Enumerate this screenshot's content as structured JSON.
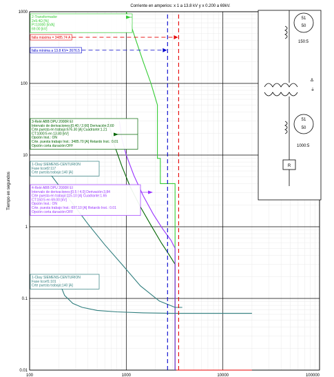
{
  "chart_data": {
    "type": "line",
    "title": "Corriente en amperios: x 1 a 13.8 kV y x 0.200 a 69kV.",
    "ylabel": "Tiempo en segundos",
    "xlabel": "",
    "x_scale": "log",
    "y_scale": "log",
    "xlim": [
      100,
      100000
    ],
    "ylim": [
      0.01,
      1000
    ],
    "grid": true,
    "x_tick_labels": [
      {
        "value": 100,
        "label": "100"
      },
      {
        "value": 1000,
        "label": "1000"
      },
      {
        "value": 10000,
        "label": "10000"
      },
      {
        "value": 100000,
        "label": "100000"
      }
    ],
    "y_tick_labels": [
      {
        "value": 1000,
        "label": "1000"
      },
      {
        "value": 100,
        "label": "100"
      },
      {
        "value": 10,
        "label": "10"
      },
      {
        "value": 1,
        "label": "1"
      },
      {
        "value": 0.1,
        "label": "0.1"
      },
      {
        "value": 0.01,
        "label": "0.01"
      }
    ],
    "series": [
      {
        "color": "#33cc33",
        "style": "solid",
        "x": [
          1000,
          1120,
          1260,
          1500,
          1800,
          2100,
          2100,
          2250,
          2250,
          3200,
          3200
        ],
        "y": [
          1000,
          650,
          400,
          200,
          100,
          50,
          9,
          9,
          4,
          4,
          0.01
        ]
      },
      {
        "color": "#006600",
        "style": "solid",
        "x": [
          650,
          750,
          900,
          1100,
          1400,
          1800,
          2300,
          2800,
          3200,
          3200
        ],
        "y": [
          30,
          14,
          7,
          3.6,
          1.9,
          1.05,
          0.6,
          0.4,
          0.3,
          0.01
        ]
      },
      {
        "color": "#9933ff",
        "style": "solid",
        "x": [
          850,
          900,
          1000,
          1200,
          1500,
          1900,
          2400,
          2900,
          3200,
          3200
        ],
        "y": [
          30,
          17,
          10,
          5.2,
          2.7,
          1.5,
          0.92,
          0.65,
          0.5,
          0.01
        ]
      },
      {
        "color": "#2e7d7d",
        "style": "solid",
        "x": [
          130,
          200,
          300,
          400,
          600,
          900,
          1400,
          2200,
          3200,
          3800
        ],
        "y": [
          8.2,
          3.8,
          1.85,
          1.1,
          0.56,
          0.3,
          0.15,
          0.092,
          0.075,
          0.075
        ]
      },
      {
        "color": "#2e7d7d",
        "style": "solid",
        "x": [
          200,
          210,
          230,
          280,
          350,
          500,
          800,
          1500,
          3000,
          8000,
          20000
        ],
        "y": [
          0.2,
          0.15,
          0.11,
          0.085,
          0.075,
          0.068,
          0.065,
          0.063,
          0.062,
          0.062,
          0.062
        ]
      },
      {
        "color": "#e60000",
        "style": "dashed",
        "x": [
          3485.7,
          3485.7
        ],
        "y": [
          0.01,
          1000
        ]
      },
      {
        "color": "#e60000",
        "style": "solid",
        "x": [
          3300,
          20000
        ],
        "y": [
          0.01,
          0.01
        ]
      },
      {
        "color": "#0000cc",
        "style": "dashed",
        "x": [
          2676.5,
          2676.5
        ],
        "y": [
          0.01,
          1000
        ]
      }
    ],
    "fault_markers": [
      {
        "label": "falla máxima = 3485.74 A",
        "x": 3485.7,
        "y": 440,
        "color": "#e60000"
      },
      {
        "label": "falla mínima a 13.8 KV= 2676.5",
        "x": 2676.5,
        "y": 290,
        "color": "#0000cc"
      }
    ],
    "annotations": [
      {
        "color": "#33cc33",
        "lines": [
          "2-Transformador",
          "2x9.4Ω [%]",
          "P=10000 [kVA]",
          "69.00 [kV]"
        ]
      },
      {
        "color": "#006600",
        "lines": [
          "3-Relé ABB DPU 2000R EI",
          "Intervalo de derivaciones:[0.40 / 2.66] Derivación:2.60",
          "Crte.puesta en trabajo:676.30 [A] Cuadrante:1.21",
          "CT:1000:5 en 13.80 [kV]",
          "Opción Inst.: ON",
          "Crte. puesta trabajo Inst.: 3485.70 [A] Retardo Inst.: 0.01",
          "Opción corta duración:OFF"
        ]
      },
      {
        "color": "#2e7d7d",
        "lines": [
          "1-Cksy SIEMENS-CENTURION",
          "Fase tccef2:117",
          "Crte puesta trabajo:140 [A]"
        ]
      },
      {
        "color": "#9933ff",
        "lines": [
          "4-Relé ABB DPU 2000R EI",
          "Intervalo de derivaciones:[0.5 / 4.0] Derivación:3.84",
          "Crte puesta en trabajo:115.10 [A] Cuadrante:1.65",
          "CT:150:5 en 69.00 [kV]",
          "Opción Inst.: ON",
          "Crte. puesta trabajo Inst.: 697.10 [A] Retardo Inst.: 0.01",
          "Opción corta duración:OFF"
        ]
      },
      {
        "color": "#2e7d7d",
        "lines": [
          "1-Cksy SIEMENS-CENTURION",
          "Fase tccef1:101",
          "Crte puesta trabajo:140 [A]"
        ]
      }
    ]
  },
  "one_line": {
    "relay_top": {
      "code1": "51",
      "code2": "50",
      "ct": "150:5"
    },
    "transformer_symbol": "Δ",
    "relay_bottom": {
      "code1": "51",
      "code2": "50",
      "ct": "1000:5"
    },
    "recloser": "R"
  }
}
